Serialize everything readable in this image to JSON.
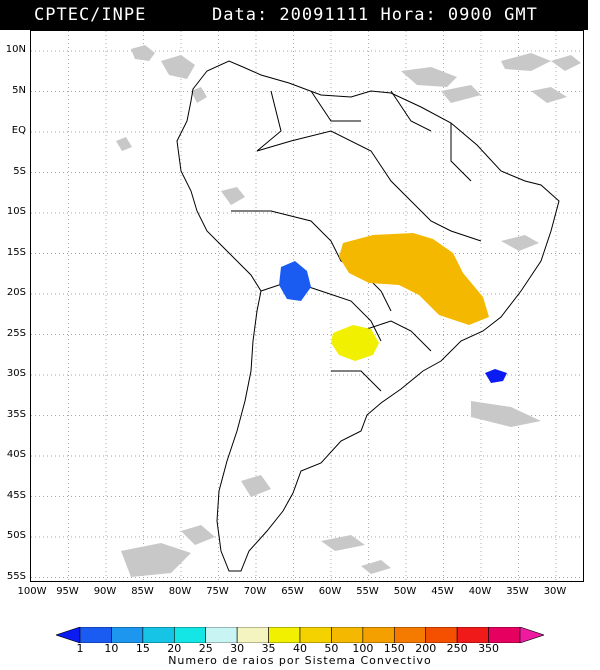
{
  "header": {
    "source": "CPTEC/INPE",
    "datetime": "Data: 20091111  Hora: 0900 GMT"
  },
  "map": {
    "lat_labels": [
      "10N",
      "5N",
      "EQ",
      "5S",
      "10S",
      "15S",
      "20S",
      "25S",
      "30S",
      "35S",
      "40S",
      "45S",
      "50S",
      "55S"
    ],
    "lon_labels": [
      "100W",
      "95W",
      "90W",
      "85W",
      "80W",
      "75W",
      "70W",
      "65W",
      "60W",
      "55W",
      "50W",
      "45W",
      "40W",
      "35W",
      "30W"
    ],
    "features": [
      "country-borders",
      "cloud-cover-gray",
      "lightning-cluster-bolivia",
      "lightning-cluster-central-brazil",
      "lightning-cluster-paraguay",
      "lightning-cluster-south-atlantic"
    ]
  },
  "legend": {
    "ticks": [
      "1",
      "10",
      "15",
      "20",
      "25",
      "30",
      "35",
      "40",
      "50",
      "100",
      "150",
      "200",
      "250",
      "350"
    ],
    "colors": [
      "#0a1cf2",
      "#1a5cf2",
      "#1c96ee",
      "#16c4e6",
      "#14e6e6",
      "#c8f4f4",
      "#f4f4c0",
      "#f0f000",
      "#f4d200",
      "#f4b800",
      "#f4a000",
      "#f47a00",
      "#f45000",
      "#f01a1a",
      "#e60060",
      "#ee1aa0"
    ],
    "title": "Numero de raios por Sistema Convectivo"
  }
}
